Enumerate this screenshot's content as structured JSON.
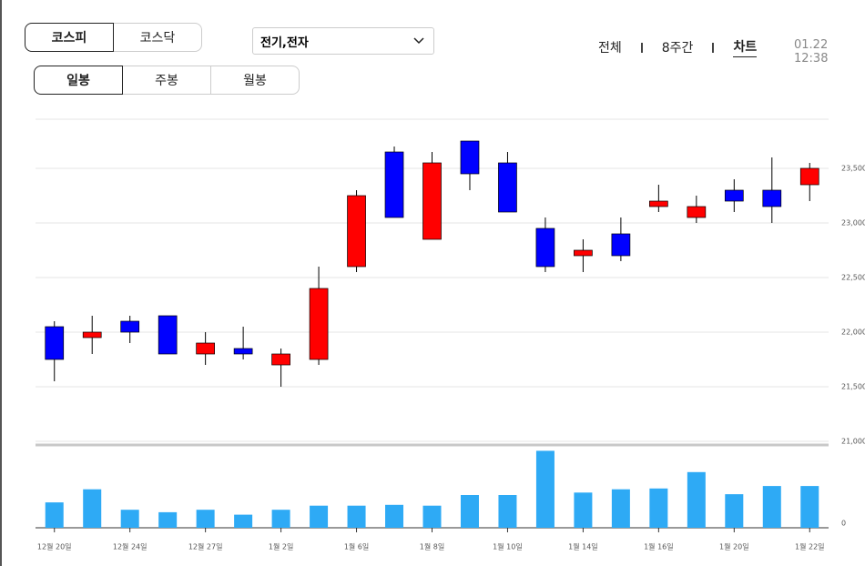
{
  "market_tabs": [
    "코스피",
    "코스닥"
  ],
  "sector_select": "전기,전자",
  "period_tabs": [
    "일봉",
    "주봉",
    "월봉"
  ],
  "view_tabs": [
    "전체",
    "8주간",
    "차트"
  ],
  "timestamp": "01.22 12:38",
  "chart_data": {
    "type": "candlestick",
    "categories": [
      "12월 20일",
      null,
      "12월 24일",
      null,
      "12월 27일",
      null,
      "1월 2일",
      null,
      "1월 6일",
      null,
      "1월 8일",
      null,
      "1월 10일",
      null,
      "1월 14일",
      null,
      "1월 16일",
      null,
      "1월 20일",
      null,
      "1월 22일"
    ],
    "open": [
      22050,
      21950,
      22100,
      22150,
      21800,
      21850,
      21700,
      21750,
      22600,
      23650,
      22850,
      23750,
      23550,
      22950,
      22700,
      22900,
      23150,
      23050,
      23300,
      23300,
      23350
    ],
    "high": [
      22100,
      22150,
      22150,
      22150,
      22000,
      22050,
      21850,
      22600,
      23300,
      23700,
      23650,
      23750,
      23650,
      23050,
      22850,
      23050,
      23350,
      23250,
      23400,
      23600,
      23550
    ],
    "low": [
      21550,
      21800,
      21900,
      21800,
      21700,
      21750,
      21500,
      21700,
      22550,
      23050,
      22850,
      23300,
      23100,
      22550,
      22550,
      22650,
      23100,
      23000,
      23100,
      23000,
      23200
    ],
    "close": [
      21750,
      22000,
      22000,
      21800,
      21900,
      21800,
      21800,
      22400,
      23250,
      23050,
      23550,
      23450,
      23100,
      22600,
      22750,
      22700,
      23200,
      23150,
      23200,
      23150,
      23500
    ],
    "up_color": "#ff0000",
    "down_color": "#0000ff",
    "ylim": [
      21000,
      23950
    ],
    "yticks": [
      {
        "value": 21000,
        "label": "21,000"
      },
      {
        "value": 21500,
        "label": "21,500"
      },
      {
        "value": 22000,
        "label": "22,000"
      },
      {
        "value": 22500,
        "label": "22,500"
      },
      {
        "value": 23000,
        "label": "23,000"
      },
      {
        "value": 23500,
        "label": "23,500"
      }
    ],
    "grid": true,
    "volume": {
      "type": "bar",
      "color": "#2eaaf5",
      "values": [
        31,
        47,
        22,
        19,
        22,
        16,
        22,
        27,
        27,
        28,
        27,
        40,
        40,
        94,
        43,
        47,
        48,
        68,
        41,
        51,
        51
      ],
      "ylim": [
        0,
        100
      ],
      "yticks": [
        0
      ]
    }
  }
}
